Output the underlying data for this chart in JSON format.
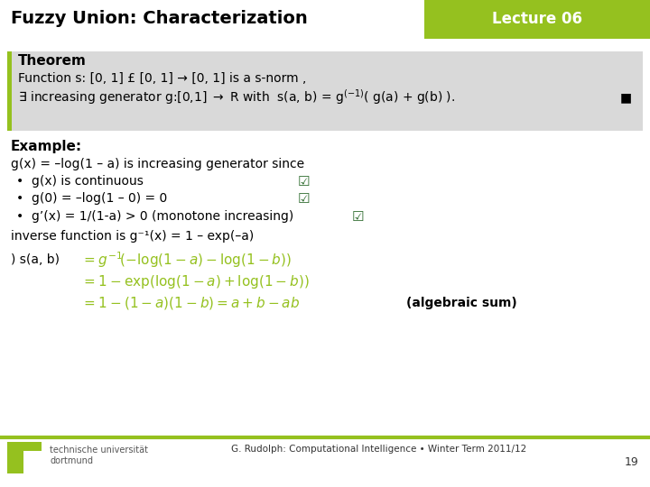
{
  "title": "Fuzzy Union: Characterization",
  "lecture": "Lecture 06",
  "bg_color": "#ffffff",
  "header_bg": "#ffffff",
  "lecture_bg": "#95c11f",
  "theorem_bg": "#d9d9d9",
  "header_text_color": "#000000",
  "lecture_text_color": "#ffffff",
  "body_text_color": "#000000",
  "footer_line_color": "#95c11f",
  "footer_text": "G. Rudolph: Computational Intelligence • Winter Term 2011/12",
  "page_number": "19",
  "uni_name": "technische universität\ndortmund"
}
